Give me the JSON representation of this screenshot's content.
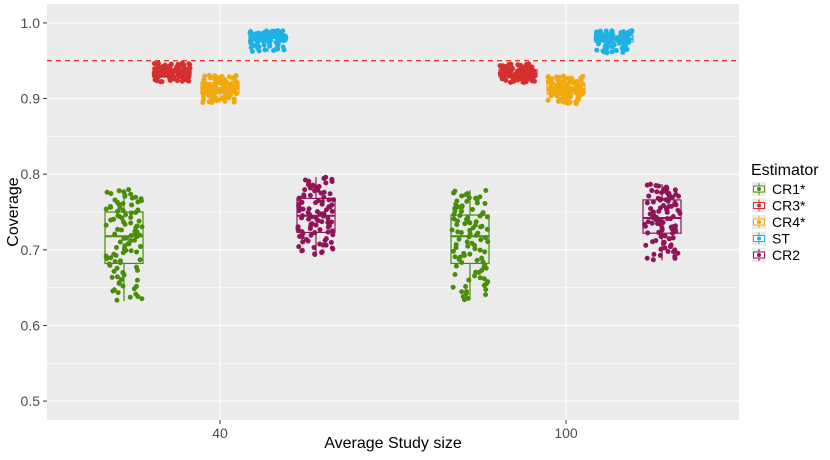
{
  "chart_data": {
    "type": "boxplot-jitter",
    "title": "",
    "xlabel": "Average Study size",
    "ylabel": "Coverage",
    "categories": [
      "40",
      "100"
    ],
    "ylim": [
      0.475,
      1.025
    ],
    "yticks": [
      0.5,
      0.6,
      0.7,
      0.8,
      0.9,
      1.0
    ],
    "ytick_labels": [
      "0.5",
      "0.6",
      "0.7",
      "0.8",
      "0.9",
      "1.0"
    ],
    "reference_line": {
      "y": 0.95,
      "style": "dashed",
      "color": "#e8392e"
    },
    "legend": {
      "title": "Estimator",
      "position": "right"
    },
    "series": [
      {
        "name": "CR1*",
        "color": "#4a8c0b",
        "stats": [
          {
            "min": 0.632,
            "q1": 0.682,
            "median": 0.718,
            "q3": 0.75,
            "max": 0.78
          },
          {
            "min": 0.633,
            "q1": 0.682,
            "median": 0.718,
            "q3": 0.746,
            "max": 0.779
          }
        ]
      },
      {
        "name": "CR3*",
        "color": "#d3302f",
        "stats": [
          {
            "min": 0.922,
            "q1": 0.93,
            "median": 0.934,
            "q3": 0.939,
            "max": 0.947
          },
          {
            "min": 0.921,
            "q1": 0.929,
            "median": 0.933,
            "q3": 0.938,
            "max": 0.946
          }
        ]
      },
      {
        "name": "CR4*",
        "color": "#f0a80e",
        "stats": [
          {
            "min": 0.894,
            "q1": 0.907,
            "median": 0.914,
            "q3": 0.921,
            "max": 0.931
          },
          {
            "min": 0.893,
            "q1": 0.906,
            "median": 0.913,
            "q3": 0.92,
            "max": 0.93
          }
        ]
      },
      {
        "name": "ST",
        "color": "#1fb0e6",
        "stats": [
          {
            "min": 0.962,
            "q1": 0.976,
            "median": 0.98,
            "q3": 0.984,
            "max": 0.99
          },
          {
            "min": 0.96,
            "q1": 0.975,
            "median": 0.979,
            "q3": 0.983,
            "max": 0.99
          }
        ]
      },
      {
        "name": "CR2",
        "color": "#8e1557",
        "stats": [
          {
            "min": 0.693,
            "q1": 0.723,
            "median": 0.745,
            "q3": 0.768,
            "max": 0.796
          },
          {
            "min": 0.686,
            "q1": 0.722,
            "median": 0.742,
            "q3": 0.766,
            "max": 0.787
          }
        ]
      }
    ]
  }
}
